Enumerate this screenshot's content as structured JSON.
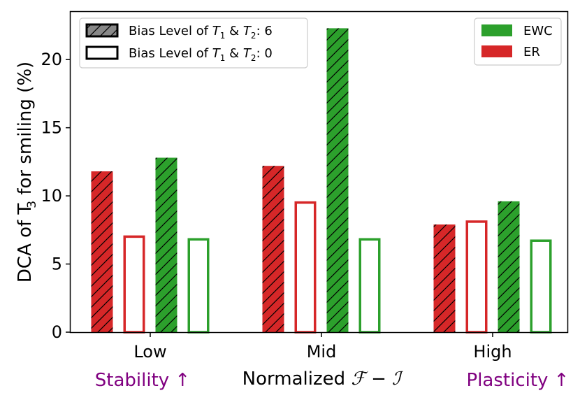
{
  "chart_data": {
    "type": "bar",
    "categories": [
      "Low",
      "Mid",
      "High"
    ],
    "category_annotations": [
      "Stability ↑",
      "",
      "Plasticity ↑"
    ],
    "annotation_color": "#800080",
    "xlabel_prefix": "Normalized ",
    "xlabel_math": "ℱ − ℐ",
    "ylabel_pre": "DCA of T",
    "ylabel_sub": "3",
    "ylabel_post": " for smiling (%)",
    "ylim": [
      0,
      23.5
    ],
    "yticks": [
      0,
      5,
      10,
      15,
      20
    ],
    "series": [
      {
        "method": "ER",
        "bias": "6",
        "hatched": true,
        "color": "#d62728",
        "values": [
          11.8,
          12.2,
          7.9
        ]
      },
      {
        "method": "ER",
        "bias": "0",
        "hatched": false,
        "color": "#d62728",
        "values": [
          7.1,
          9.6,
          8.2
        ]
      },
      {
        "method": "EWC",
        "bias": "6",
        "hatched": true,
        "color": "#2ca02c",
        "values": [
          12.8,
          22.3,
          9.6
        ]
      },
      {
        "method": "EWC",
        "bias": "0",
        "hatched": false,
        "color": "#2ca02c",
        "values": [
          6.9,
          6.9,
          6.8
        ]
      }
    ],
    "legend_bias": [
      {
        "pre": "Bias Level of ",
        "t1": "T",
        "s1": "1",
        "mid": " & ",
        "t2": "T",
        "s2": "2",
        "post": ": 6",
        "hatched": true
      },
      {
        "pre": "Bias Level of ",
        "t1": "T",
        "s1": "1",
        "mid": " & ",
        "t2": "T",
        "s2": "2",
        "post": ": 0",
        "hatched": false
      }
    ],
    "legend_bias_position": "top-left",
    "legend_methods": [
      {
        "label": "EWC",
        "color": "#2ca02c"
      },
      {
        "label": "ER",
        "color": "#d62728"
      }
    ],
    "legend_methods_position": "top-right",
    "grid": false
  }
}
